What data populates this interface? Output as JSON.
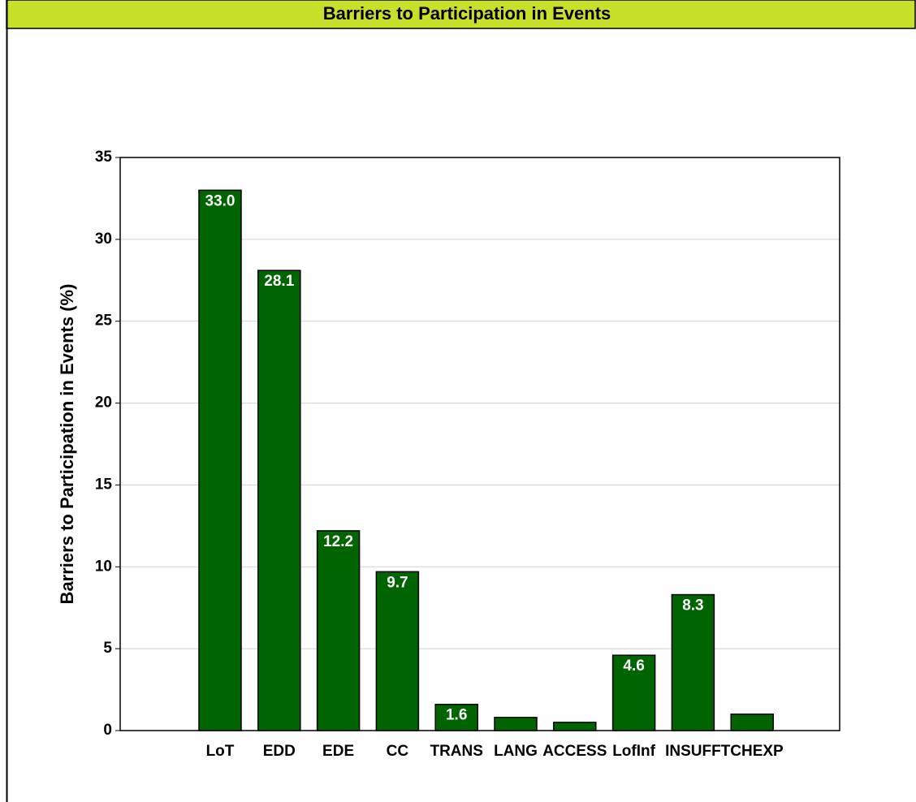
{
  "chart_data": {
    "type": "bar",
    "title": "Barriers to Participation in Events",
    "ylabel": "Barriers to Participation in Events  (%)",
    "categories": [
      "LoT",
      "EDD",
      "EDE",
      "CC",
      "TRANS",
      "LANG",
      "ACCESS",
      "LofInf",
      "INSUFF",
      "TCHEXP"
    ],
    "values": [
      33.0,
      28.1,
      12.2,
      9.7,
      1.6,
      0.8,
      0.5,
      4.6,
      8.3,
      1.0
    ],
    "value_labels": [
      "33.0",
      "28.1",
      "12.2",
      "9.7",
      "1.6",
      null,
      null,
      "4.6",
      "8.3",
      null
    ],
    "color": "#006400",
    "ylim": [
      0,
      35
    ],
    "yticks": [
      0,
      5,
      10,
      15,
      20,
      25,
      30,
      35
    ],
    "grid": true
  }
}
